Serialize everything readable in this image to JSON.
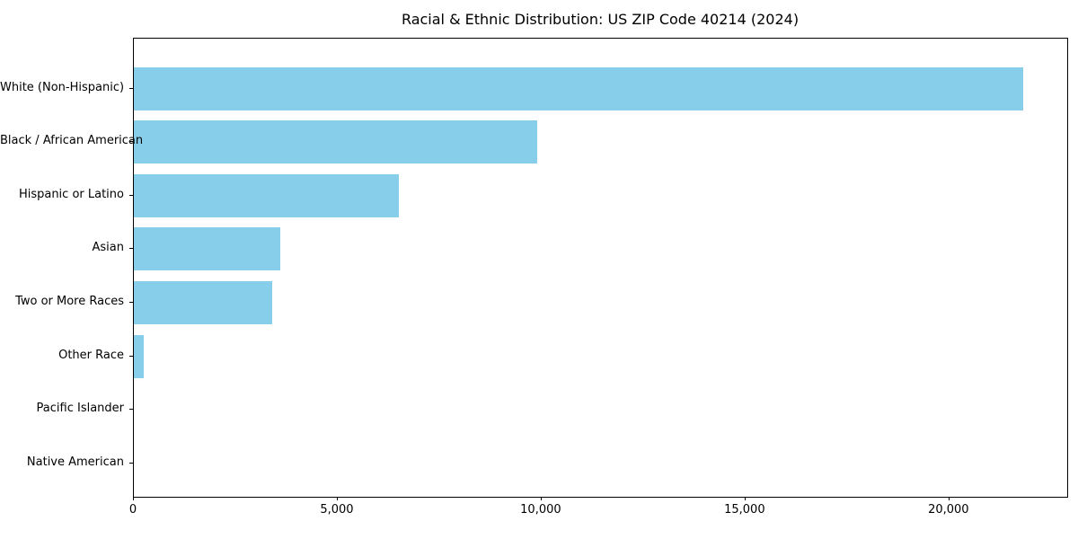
{
  "chart_data": {
    "type": "bar",
    "orientation": "horizontal",
    "title": "Racial & Ethnic Distribution: US ZIP Code 40214 (2024)",
    "categories": [
      "White (Non-Hispanic)",
      "Black / African American",
      "Hispanic or Latino",
      "Asian",
      "Two or More Races",
      "Other Race",
      "Pacific Islander",
      "Native American"
    ],
    "values": [
      21800,
      9900,
      6500,
      3600,
      3400,
      250,
      0,
      0
    ],
    "xlabel": "",
    "ylabel": "",
    "xlim": [
      0,
      22890
    ],
    "xticks": [
      0,
      5000,
      10000,
      15000,
      20000
    ],
    "xtick_labels": [
      "0",
      "5,000",
      "10,000",
      "15,000",
      "20,000"
    ],
    "bar_color": "#87CEEB",
    "background_color": "#ffffff",
    "frame_color": "#000000",
    "grid": false,
    "legend": null
  }
}
